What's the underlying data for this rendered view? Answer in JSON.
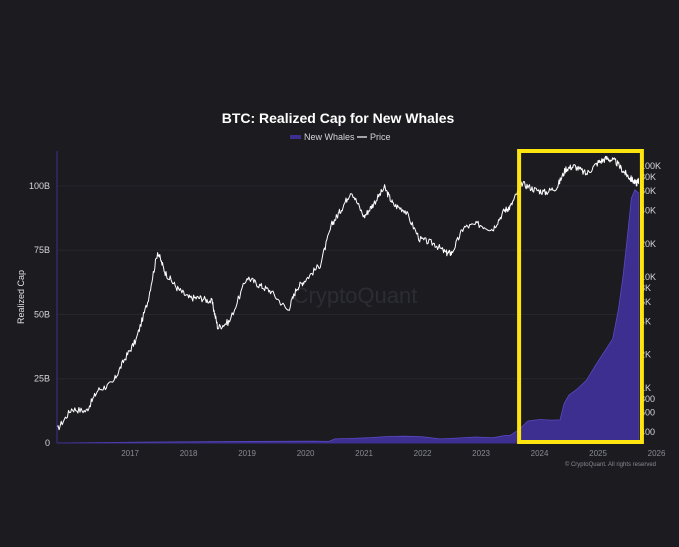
{
  "chart_data": {
    "type": "area",
    "title": "BTC: Realized Cap for New Whales",
    "ylabel": "Realized Cap",
    "legend": {
      "placement": "top-center",
      "items": [
        "New Whales",
        "Price"
      ]
    },
    "x_ticks": [
      "2017",
      "2018",
      "2019",
      "2020",
      "2021",
      "2022",
      "2023",
      "2024",
      "2025",
      "2026"
    ],
    "x_range": [
      2016.25,
      2026.2
    ],
    "y_left": {
      "ticks": [
        "0",
        "25B",
        "50B",
        "75B",
        "100B"
      ],
      "tick_values": [
        0,
        25,
        50,
        75,
        100
      ],
      "range": [
        0,
        114
      ],
      "unit": "B"
    },
    "y_right": {
      "scale": "log",
      "ticks": [
        "400",
        "600",
        "800",
        "1K",
        "2K",
        "4K",
        "6K",
        "8K",
        "10K",
        "20K",
        "40K",
        "60K",
        "80K",
        "100K"
      ],
      "tick_values": [
        400,
        600,
        800,
        1000,
        2000,
        4000,
        6000,
        8000,
        10000,
        20000,
        40000,
        60000,
        80000,
        100000
      ],
      "range": [
        320,
        140000
      ]
    },
    "grid": true,
    "series": [
      {
        "name": "New Whales",
        "axis": "left",
        "color": "#3d2f8f",
        "x": [
          2016.25,
          2018.0,
          2020.6,
          2020.9,
          2021.0,
          2021.3,
          2021.6,
          2021.9,
          2022.2,
          2022.5,
          2022.8,
          2023.0,
          2023.4,
          2023.7,
          2023.9,
          2024.0,
          2024.15,
          2024.3,
          2024.5,
          2024.7,
          2024.85,
          2024.92,
          2025.0,
          2025.15,
          2025.3,
          2025.45,
          2025.6,
          2025.75,
          2025.85,
          2025.93,
          2026.0,
          2026.07,
          2026.13,
          2026.2
        ],
        "values": [
          0.05,
          0.1,
          0.2,
          0.5,
          1.2,
          1.8,
          1.8,
          2.0,
          2.5,
          2.0,
          1.6,
          1.5,
          1.8,
          1.9,
          2.5,
          3.0,
          5.0,
          8.0,
          9.0,
          8.5,
          9.0,
          15.0,
          18.0,
          21.0,
          24.0,
          30.0,
          35.0,
          40.0,
          52.0,
          65.0,
          80.0,
          95.0,
          98.0,
          97.0
        ]
      },
      {
        "name": "Price",
        "axis": "right",
        "color": "#ffffff",
        "x": [
          2016.25,
          2016.5,
          2016.75,
          2016.95,
          2017.2,
          2017.4,
          2017.6,
          2017.8,
          2017.97,
          2018.1,
          2018.3,
          2018.5,
          2018.7,
          2018.9,
          2019.0,
          2019.2,
          2019.5,
          2019.7,
          2019.9,
          2020.2,
          2020.35,
          2020.5,
          2020.75,
          2020.95,
          2021.1,
          2021.28,
          2021.5,
          2021.65,
          2021.85,
          2022.0,
          2022.2,
          2022.45,
          2022.7,
          2022.9,
          2023.0,
          2023.2,
          2023.45,
          2023.7,
          2023.9,
          2024.0,
          2024.2,
          2024.4,
          2024.6,
          2024.8,
          2024.95,
          2025.1,
          2025.3,
          2025.5,
          2025.65,
          2025.8,
          2025.95,
          2026.05,
          2026.15,
          2026.2
        ],
        "values": [
          420,
          650,
          620,
          960,
          1100,
          1800,
          2700,
          6000,
          17000,
          11000,
          8000,
          6500,
          6500,
          6000,
          3500,
          4000,
          10000,
          8500,
          7500,
          5000,
          8000,
          9500,
          13000,
          30000,
          40000,
          60000,
          35000,
          45000,
          64000,
          45000,
          40000,
          22000,
          20000,
          16500,
          16500,
          28000,
          30000,
          27000,
          40000,
          43000,
          70000,
          62000,
          58000,
          65000,
          95000,
          100000,
          85000,
          108000,
          118000,
          110000,
          88000,
          78000,
          70000,
          75000
        ]
      }
    ],
    "highlight": {
      "x_range": [
        2024.15,
        2026.25
      ],
      "color": "#ffe50f"
    },
    "watermark": "CryptoQuant",
    "copyright": "© CryptoQuant. All rights reserved"
  }
}
